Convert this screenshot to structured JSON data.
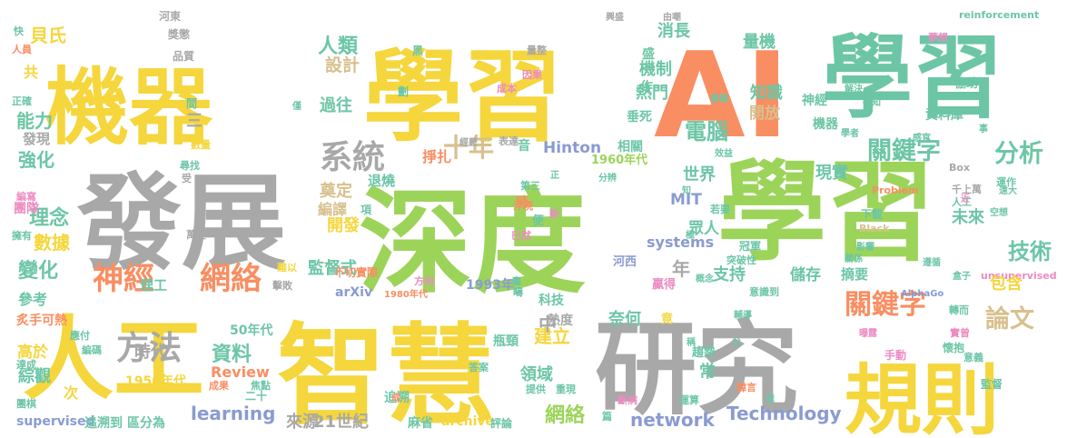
{
  "colors": {
    "yellow": "#f5d63c",
    "green": "#9cd45a",
    "gray": "#a8a8a8",
    "orange": "#f98e62",
    "teal": "#6cc6a6",
    "blue": "#8a9bd2",
    "pink": "#ec8cc2",
    "tan": "#d8c08e",
    "lightgreen": "#b9dc8a"
  },
  "words": [
    {
      "text": "機器",
      "color": "yellow"
    },
    {
      "text": "學習",
      "color": "yellow"
    },
    {
      "text": "AI",
      "color": "orange"
    },
    {
      "text": "學習",
      "color": "teal"
    },
    {
      "text": "發展",
      "color": "gray"
    },
    {
      "text": "深度",
      "color": "green"
    },
    {
      "text": "學習",
      "color": "green"
    },
    {
      "text": "人工",
      "color": "yellow"
    },
    {
      "text": "智慧",
      "color": "yellow"
    },
    {
      "text": "研究",
      "color": "gray"
    },
    {
      "text": "規則",
      "color": "yellow"
    },
    {
      "text": "系統",
      "color": "gray"
    },
    {
      "text": "十年",
      "color": "tan"
    },
    {
      "text": "神經",
      "color": "orange"
    },
    {
      "text": "網絡",
      "color": "orange"
    },
    {
      "text": "方法",
      "color": "gray"
    },
    {
      "text": "關鍵字",
      "color": "teal"
    },
    {
      "text": "分析",
      "color": "teal"
    },
    {
      "text": "論文",
      "color": "tan"
    },
    {
      "text": "技術",
      "color": "teal"
    },
    {
      "text": "關鍵字",
      "color": "orange"
    },
    {
      "text": "電腦",
      "color": "teal"
    },
    {
      "text": "人類",
      "color": "teal"
    },
    {
      "text": "資料",
      "color": "teal"
    },
    {
      "text": "網絡",
      "color": "green"
    },
    {
      "text": "network",
      "color": "blue"
    },
    {
      "text": "learning",
      "color": "blue"
    },
    {
      "text": "Technology",
      "color": "blue"
    },
    {
      "text": "Hinton",
      "color": "blue"
    },
    {
      "text": "systems",
      "color": "blue"
    },
    {
      "text": "MIT",
      "color": "blue"
    },
    {
      "text": "Review",
      "color": "orange"
    },
    {
      "text": "arXiv",
      "color": "blue"
    },
    {
      "text": "archive",
      "color": "yellow"
    },
    {
      "text": "supervised",
      "color": "blue"
    },
    {
      "text": "unsupervised",
      "color": "pink"
    },
    {
      "text": "reinforcement",
      "color": "teal"
    },
    {
      "text": "AlphaGo",
      "color": "blue"
    },
    {
      "text": "Black",
      "color": "tan"
    },
    {
      "text": "Box",
      "color": "gray"
    },
    {
      "text": "Problem",
      "color": "orange"
    },
    {
      "text": "1960年代",
      "color": "green"
    },
    {
      "text": "1950年代",
      "color": "yellow"
    },
    {
      "text": "1980年代",
      "color": "orange"
    },
    {
      "text": "1993年",
      "color": "blue"
    },
    {
      "text": "50年代",
      "color": "teal"
    },
    {
      "text": "21世紀",
      "color": "gray"
    },
    {
      "text": "來源",
      "color": "gray"
    },
    {
      "text": "變化",
      "color": "teal"
    },
    {
      "text": "數據",
      "color": "yellow"
    },
    {
      "text": "理念",
      "color": "teal"
    },
    {
      "text": "強化",
      "color": "teal"
    },
    {
      "text": "能力",
      "color": "teal"
    },
    {
      "text": "貝氏",
      "color": "yellow"
    },
    {
      "text": "設計",
      "color": "tan"
    },
    {
      "text": "過往",
      "color": "teal"
    },
    {
      "text": "機制",
      "color": "teal"
    },
    {
      "text": "知識",
      "color": "teal"
    },
    {
      "text": "量機",
      "color": "teal"
    },
    {
      "text": "消長",
      "color": "teal"
    },
    {
      "text": "熱門",
      "color": "teal"
    },
    {
      "text": "開放",
      "color": "tan"
    },
    {
      "text": "現實",
      "color": "teal"
    },
    {
      "text": "世界",
      "color": "teal"
    },
    {
      "text": "未來",
      "color": "teal"
    },
    {
      "text": "包含",
      "color": "yellow"
    },
    {
      "text": "監督式",
      "color": "teal"
    },
    {
      "text": "支持",
      "color": "teal"
    },
    {
      "text": "儲存",
      "color": "teal"
    },
    {
      "text": "摘要",
      "color": "teal"
    },
    {
      "text": "開發",
      "color": "yellow"
    },
    {
      "text": "眾人",
      "color": "teal"
    },
    {
      "text": "奠定",
      "color": "tan"
    },
    {
      "text": "編譯",
      "color": "tan"
    },
    {
      "text": "時代",
      "color": "gray"
    },
    {
      "text": "高於",
      "color": "yellow"
    },
    {
      "text": "綜觀",
      "color": "teal"
    },
    {
      "text": "參考",
      "color": "teal"
    },
    {
      "text": "團隊",
      "color": "pink"
    },
    {
      "text": "領域",
      "color": "teal"
    },
    {
      "text": "建立",
      "color": "yellow"
    },
    {
      "text": "熱度",
      "color": "gray"
    },
    {
      "text": "奈何",
      "color": "teal"
    },
    {
      "text": "科技",
      "color": "teal"
    },
    {
      "text": "河西",
      "color": "blue"
    },
    {
      "text": "贏得",
      "color": "pink"
    },
    {
      "text": "追溯",
      "color": "teal"
    },
    {
      "text": "追溯到",
      "color": "teal"
    },
    {
      "text": "區分為",
      "color": "teal"
    },
    {
      "text": "麻省",
      "color": "teal"
    },
    {
      "text": "評論",
      "color": "teal"
    },
    {
      "text": "理工",
      "color": "teal"
    },
    {
      "text": "退燒",
      "color": "teal"
    },
    {
      "text": "掙扎",
      "color": "orange"
    },
    {
      "text": "常",
      "color": "teal"
    },
    {
      "text": "年",
      "color": "gray"
    },
    {
      "text": "中",
      "color": "gray"
    },
    {
      "text": "次",
      "color": "yellow"
    },
    {
      "text": "共",
      "color": "yellow"
    },
    {
      "text": "三",
      "color": "gray"
    },
    {
      "text": "項",
      "color": "teal"
    },
    {
      "text": "時",
      "color": "orange"
    },
    {
      "text": "音",
      "color": "teal"
    },
    {
      "text": "機器",
      "color": "teal"
    },
    {
      "text": "相關",
      "color": "teal"
    },
    {
      "text": "資料庫",
      "color": "teal"
    },
    {
      "text": "垂死",
      "color": "teal"
    },
    {
      "text": "盛",
      "color": "teal"
    },
    {
      "text": "作",
      "color": "teal"
    },
    {
      "text": "神經",
      "color": "teal"
    },
    {
      "text": "協助",
      "color": "teal"
    },
    {
      "text": "夢想",
      "color": "pink"
    },
    {
      "text": "成本",
      "color": "pink"
    },
    {
      "text": "因果",
      "color": "pink"
    },
    {
      "text": "表達",
      "color": "gray"
    },
    {
      "text": "經歷",
      "color": "gray"
    },
    {
      "text": "量整",
      "color": "gray"
    },
    {
      "text": "由嘲",
      "color": "gray"
    },
    {
      "text": "興盛",
      "color": "gray"
    },
    {
      "text": "河東",
      "color": "gray"
    },
    {
      "text": "獎懲",
      "color": "gray"
    },
    {
      "text": "品質",
      "color": "gray"
    },
    {
      "text": "快",
      "color": "teal"
    },
    {
      "text": "人員",
      "color": "orange"
    },
    {
      "text": "正確",
      "color": "teal"
    },
    {
      "text": "發現",
      "color": "gray"
    },
    {
      "text": "數量",
      "color": "yellow"
    },
    {
      "text": "尋找",
      "color": "teal"
    },
    {
      "text": "編寫",
      "color": "pink"
    },
    {
      "text": "擁有",
      "color": "teal"
    },
    {
      "text": "萬變",
      "color": "gray"
    },
    {
      "text": "炙手可熱",
      "color": "orange"
    },
    {
      "text": "應付",
      "color": "teal"
    },
    {
      "text": "編碼",
      "color": "teal"
    },
    {
      "text": "達成",
      "color": "teal"
    },
    {
      "text": "團棋",
      "color": "teal"
    },
    {
      "text": "成果",
      "color": "orange"
    },
    {
      "text": "焦點",
      "color": "teal"
    },
    {
      "text": "二十",
      "color": "teal"
    },
    {
      "text": "擊敗",
      "color": "gray"
    },
    {
      "text": "難以",
      "color": "yellow"
    },
    {
      "text": "不切實際",
      "color": "orange"
    },
    {
      "text": "巳然",
      "color": "pink"
    },
    {
      "text": "浮現",
      "color": "orange"
    },
    {
      "text": "便",
      "color": "teal"
    },
    {
      "text": "第三",
      "color": "teal"
    },
    {
      "text": "新",
      "color": "pink"
    },
    {
      "text": "若要",
      "color": "teal"
    },
    {
      "text": "冠軍",
      "color": "teal"
    },
    {
      "text": "突破性",
      "color": "teal"
    },
    {
      "text": "意識到",
      "color": "teal"
    },
    {
      "text": "轉而",
      "color": "teal"
    },
    {
      "text": "實曾",
      "color": "pink"
    },
    {
      "text": "懷抱",
      "color": "teal"
    },
    {
      "text": "手動",
      "color": "pink"
    },
    {
      "text": "意義",
      "color": "teal"
    },
    {
      "text": "斷病",
      "color": "pink"
    },
    {
      "text": "運算",
      "color": "teal"
    },
    {
      "text": "諱言",
      "color": "orange"
    },
    {
      "text": "監督",
      "color": "teal"
    },
    {
      "text": "提供",
      "color": "teal"
    },
    {
      "text": "重現",
      "color": "teal"
    },
    {
      "text": "篇",
      "color": "teal"
    },
    {
      "text": "瓶頸",
      "color": "teal"
    },
    {
      "text": "答案",
      "color": "teal"
    },
    {
      "text": "方向",
      "color": "pink"
    },
    {
      "text": "疇",
      "color": "teal"
    },
    {
      "text": "竟",
      "color": "yellow"
    },
    {
      "text": "趨勢",
      "color": "teal"
    },
    {
      "text": "下載",
      "color": "teal"
    },
    {
      "text": "運作",
      "color": "teal"
    },
    {
      "text": "影響",
      "color": "teal"
    },
    {
      "text": "關係",
      "color": "teal"
    },
    {
      "text": "遵循",
      "color": "teal"
    },
    {
      "text": "盒子",
      "color": "teal"
    },
    {
      "text": "感官",
      "color": "teal"
    },
    {
      "text": "學者",
      "color": "teal"
    },
    {
      "text": "效益",
      "color": "teal"
    },
    {
      "text": "分辨",
      "color": "teal"
    },
    {
      "text": "曾疑",
      "color": "teal"
    },
    {
      "text": "解決",
      "color": "teal"
    },
    {
      "text": "得知",
      "color": "teal"
    },
    {
      "text": "遠大",
      "color": "teal"
    },
    {
      "text": "空想",
      "color": "teal"
    },
    {
      "text": "千上萬",
      "color": "gray"
    },
    {
      "text": "人工",
      "color": "teal"
    },
    {
      "text": "僅",
      "color": "teal"
    },
    {
      "text": "間",
      "color": "teal"
    },
    {
      "text": "黑",
      "color": "teal"
    },
    {
      "text": "劃",
      "color": "teal"
    },
    {
      "text": "知",
      "color": "teal"
    },
    {
      "text": "近",
      "color": "pink"
    },
    {
      "text": "極",
      "color": "teal"
    },
    {
      "text": "臺",
      "color": "teal"
    },
    {
      "text": "稱",
      "color": "teal"
    },
    {
      "text": "父",
      "color": "teal"
    },
    {
      "text": "達",
      "color": "teal"
    },
    {
      "text": "事",
      "color": "teal"
    },
    {
      "text": "成",
      "color": "orange"
    },
    {
      "text": "正",
      "color": "teal"
    },
    {
      "text": "受",
      "color": "gray"
    },
    {
      "text": "概念",
      "color": "teal"
    },
    {
      "text": "輔導",
      "color": "teal"
    },
    {
      "text": "曝露",
      "color": "pink"
    }
  ]
}
